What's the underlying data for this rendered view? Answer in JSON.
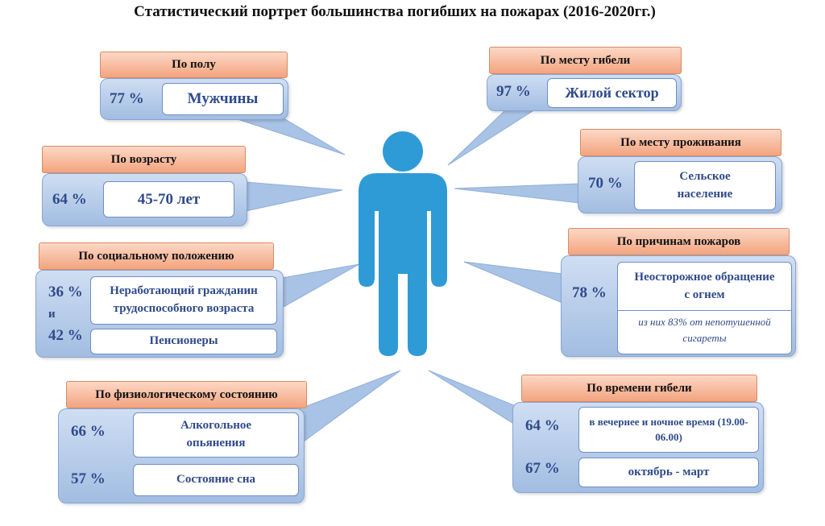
{
  "title": "Статистический портрет большинства погибших на пожарах (2016-2020гг.)",
  "panels": [
    {
      "header": "По полу",
      "stats": [
        {
          "percent": "77 %",
          "text": "Мужчины"
        }
      ]
    },
    {
      "header": "По возрасту",
      "stats": [
        {
          "percent": "64 %",
          "text": "45-70 лет"
        }
      ]
    },
    {
      "header": "По социальному положению",
      "conjunction": "и",
      "stats": [
        {
          "percent": "36 %",
          "text": "Неработающий гражданин трудоспособного возраста"
        },
        {
          "percent": "42 %",
          "text": "Пенсионеры"
        }
      ]
    },
    {
      "header": "По физиологическому состоянию",
      "stats": [
        {
          "percent": "66 %",
          "text": "Алкогольное опьянения"
        },
        {
          "percent": "57 %",
          "text": "Состояние сна"
        }
      ]
    },
    {
      "header": "По месту гибели",
      "stats": [
        {
          "percent": "97 %",
          "text": "Жилой сектор"
        }
      ]
    },
    {
      "header": "По месту проживания",
      "stats": [
        {
          "percent": "70 %",
          "text": "Сельское население"
        }
      ]
    },
    {
      "header": "По причинам пожаров",
      "stats": [
        {
          "percent": "78 %",
          "text": "Неосторожное обращение с огнем",
          "note": "из них 83% от непотушенной сигареты"
        }
      ]
    },
    {
      "header": "По времени гибели",
      "stats": [
        {
          "percent": "64 %",
          "text": "в вечернее и ночное время (19.00-06.00)"
        },
        {
          "percent": "67 %",
          "text": "октябрь - март"
        }
      ]
    }
  ]
}
